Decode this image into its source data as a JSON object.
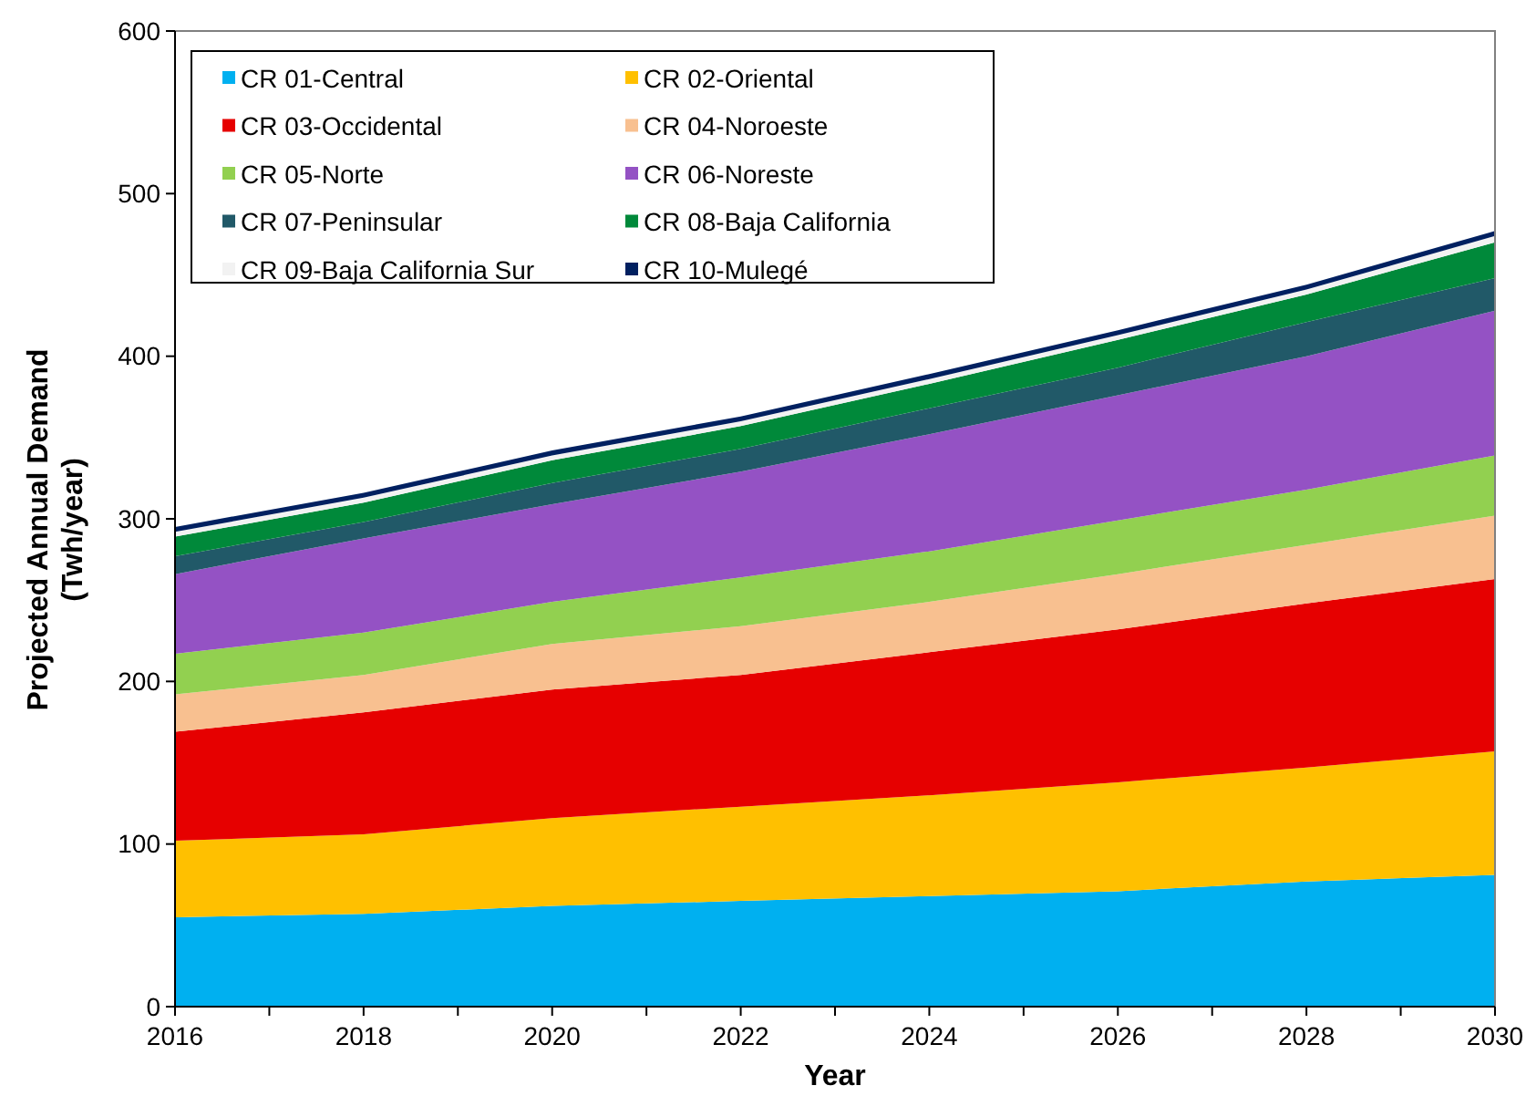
{
  "chart_data": {
    "type": "area",
    "stacked": true,
    "xlabel": "Year",
    "ylabel": "Projected  Annual Demand\n(Twh/year)",
    "x": [
      2016,
      2018,
      2020,
      2022,
      2024,
      2026,
      2028,
      2030
    ],
    "xlim": [
      2016,
      2030
    ],
    "xticks": [
      2016,
      {
        "value": 2017,
        "label": null
      },
      2018,
      {
        "value": 2019,
        "label": null
      },
      2020,
      {
        "value": 2021,
        "label": null
      },
      2022,
      {
        "value": 2023,
        "label": null
      },
      2024,
      {
        "value": 2025,
        "label": null
      },
      2026,
      {
        "value": 2027,
        "label": null
      },
      2028,
      {
        "value": 2029,
        "label": null
      },
      2030
    ],
    "ylim": [
      0,
      600
    ],
    "yticks": [
      0,
      100,
      200,
      300,
      400,
      500,
      600
    ],
    "grid": false,
    "legend": "top left",
    "series": [
      {
        "name": "CR 01-Central",
        "color": "#00b0f0",
        "values": [
          55,
          57,
          62,
          65,
          68,
          71,
          77,
          81
        ]
      },
      {
        "name": "CR 02-Oriental",
        "color": "#ffc000",
        "values": [
          47,
          49,
          54,
          58,
          62,
          67,
          70,
          76
        ]
      },
      {
        "name": "CR 03-Occidental",
        "color": "#e60000",
        "values": [
          67,
          75,
          79,
          81,
          88,
          94,
          101,
          106
        ]
      },
      {
        "name": "CR 04-Noroeste",
        "color": "#f8c090",
        "values": [
          23,
          23,
          28,
          30,
          31,
          34,
          36,
          39
        ]
      },
      {
        "name": "CR 05-Norte",
        "color": "#92d050",
        "values": [
          25,
          26,
          26,
          30,
          31,
          33,
          34,
          37
        ]
      },
      {
        "name": "CR 06-Noreste",
        "color": "#9452c4",
        "values": [
          49,
          58,
          60,
          65,
          72,
          77,
          82,
          89
        ]
      },
      {
        "name": "CR 07-Peninsular",
        "color": "#215968",
        "values": [
          11,
          10,
          13,
          14,
          16,
          17,
          21,
          20
        ]
      },
      {
        "name": "CR 08-Baja California",
        "color": "#00893a",
        "values": [
          12,
          12,
          14,
          14,
          15,
          17,
          17,
          22
        ]
      },
      {
        "name": "CR 09-Baja California Sur",
        "color": "#f2f2f2",
        "values": [
          3,
          3,
          3,
          3,
          3,
          3,
          3,
          4
        ]
      },
      {
        "name": "CR 10-Mulegé",
        "color": "#002060",
        "values": [
          3,
          3,
          3,
          3,
          3,
          3,
          3,
          3
        ]
      }
    ]
  }
}
